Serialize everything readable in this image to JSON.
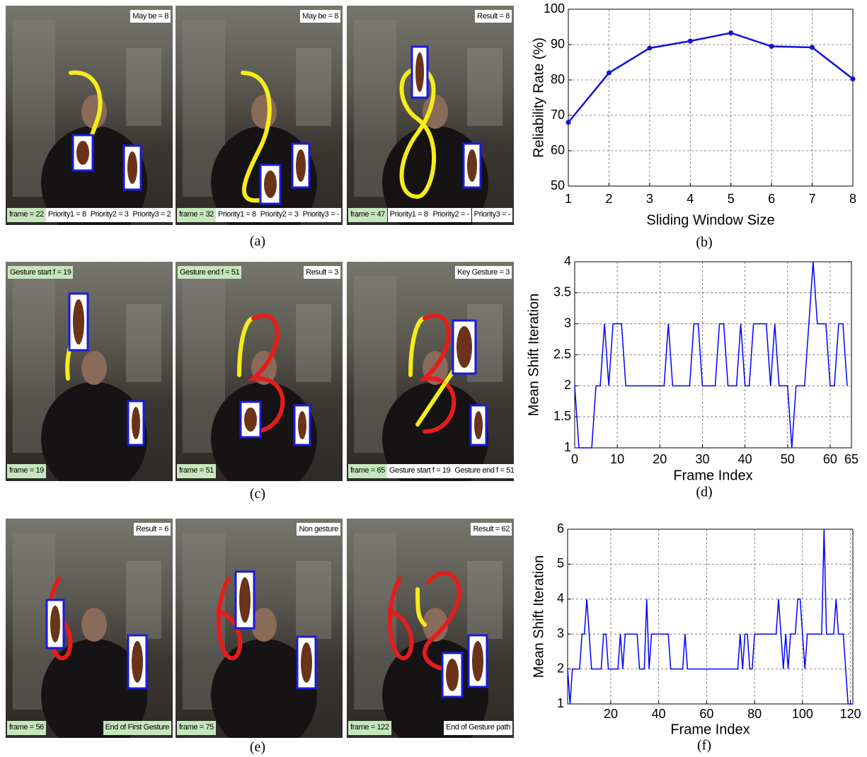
{
  "photo_rows": [
    {
      "caption": "(a)",
      "photos": [
        {
          "top_right": "May be = 8",
          "bottom": [
            "frame = 22",
            "Priority1 = 8",
            "Priority2 = 3",
            "Priority3 = 2"
          ]
        },
        {
          "top_right": "May be = 8",
          "bottom": [
            "frame = 32",
            "Priority1 = 8",
            "Priority2 = 3",
            "Priority3 = -"
          ]
        },
        {
          "top_right": "Result = 8",
          "bottom": [
            "frame = 47",
            "Priority1 = 8",
            "Priority2 = -",
            "Priority3 = -"
          ]
        }
      ]
    },
    {
      "caption": "(c)",
      "photos": [
        {
          "top_left": "Gesture start f = 19",
          "bottom": [
            "frame = 19"
          ]
        },
        {
          "top_left": "Gesture end f = 51",
          "top_right": "Result = 3",
          "bottom": [
            "frame = 51"
          ]
        },
        {
          "top_right": "Key Gesture = 3",
          "bottom": [
            "frame = 65",
            "Gesture start f = 19",
            "Gesture end f = 51"
          ]
        }
      ]
    },
    {
      "caption": "(e)",
      "photos": [
        {
          "top_right": "Result = 6",
          "bottom": [
            "frame = 56",
            "End of First Gesture"
          ]
        },
        {
          "top_right": "Non gesture",
          "bottom": [
            "frame = 75"
          ]
        },
        {
          "top_right": "Result = 62",
          "bottom": [
            "frame = 122",
            "End of Gesture path"
          ]
        }
      ]
    }
  ],
  "chart_data": [
    {
      "type": "line",
      "caption": "(b)",
      "xlabel": "Sliding Window Size",
      "ylabel": "Reliability Rate (%)",
      "x": [
        1,
        2,
        3,
        4,
        5,
        6,
        7,
        8
      ],
      "values": [
        68,
        82,
        89,
        91,
        93.3,
        89.5,
        89.2,
        80.3
      ],
      "color": "#1010e0",
      "markers": true,
      "grid": true,
      "xlim": [
        1,
        8
      ],
      "xticks": [
        1,
        2,
        3,
        4,
        5,
        6,
        7,
        8
      ],
      "ylim": [
        50,
        100
      ],
      "yticks": [
        50,
        60,
        70,
        80,
        90,
        100
      ]
    },
    {
      "type": "line",
      "caption": "(d)",
      "xlabel": "Frame Index",
      "ylabel": "Mean Shift Iteration",
      "x": [
        0,
        1,
        2,
        3,
        4,
        5,
        6,
        7,
        8,
        9,
        10,
        11,
        12,
        13,
        14,
        15,
        16,
        17,
        18,
        19,
        20,
        21,
        22,
        23,
        24,
        25,
        26,
        27,
        28,
        29,
        30,
        31,
        32,
        33,
        34,
        35,
        36,
        37,
        38,
        39,
        40,
        41,
        42,
        43,
        44,
        45,
        46,
        47,
        48,
        49,
        50,
        51,
        52,
        53,
        54,
        55,
        56,
        57,
        58,
        59,
        60,
        61,
        62,
        63,
        64
      ],
      "values": [
        2,
        1,
        1,
        1,
        1,
        2,
        2,
        3,
        2,
        3,
        3,
        3,
        2,
        2,
        2,
        2,
        2,
        2,
        2,
        2,
        2,
        2,
        3,
        2,
        2,
        2,
        2,
        2,
        3,
        3,
        2,
        2,
        2,
        2,
        3,
        3,
        2,
        2,
        2,
        3,
        2,
        2,
        3,
        3,
        3,
        3,
        2,
        3,
        2,
        2,
        2,
        1,
        2,
        2,
        2,
        3,
        4,
        3,
        3,
        3,
        2,
        2,
        3,
        3,
        2
      ],
      "color": "#0000ff",
      "markers": false,
      "grid": true,
      "xlim": [
        0,
        65
      ],
      "xticks": [
        0,
        10,
        20,
        30,
        40,
        50,
        60,
        65
      ],
      "ylim": [
        1,
        4
      ],
      "yticks": [
        1,
        1.5,
        2,
        2.5,
        3,
        3.5,
        4
      ]
    },
    {
      "type": "line",
      "caption": "(f)",
      "xlabel": "Frame Index",
      "ylabel": "Mean Shift Iteration",
      "x": [
        2,
        3,
        4,
        5,
        6,
        7,
        8,
        9,
        10,
        11,
        12,
        13,
        14,
        15,
        16,
        17,
        18,
        19,
        20,
        21,
        22,
        23,
        24,
        25,
        26,
        27,
        28,
        29,
        30,
        31,
        32,
        33,
        34,
        35,
        36,
        37,
        38,
        39,
        40,
        41,
        42,
        43,
        44,
        45,
        46,
        47,
        48,
        49,
        50,
        51,
        52,
        53,
        54,
        55,
        56,
        57,
        58,
        59,
        60,
        61,
        62,
        63,
        64,
        65,
        66,
        67,
        68,
        69,
        70,
        71,
        72,
        73,
        74,
        75,
        76,
        77,
        78,
        79,
        80,
        81,
        82,
        83,
        84,
        85,
        86,
        87,
        88,
        89,
        90,
        91,
        92,
        93,
        94,
        95,
        96,
        97,
        98,
        99,
        100,
        101,
        102,
        103,
        104,
        105,
        106,
        107,
        108,
        109,
        110,
        111,
        112,
        113,
        114,
        115,
        116,
        117,
        118,
        119,
        120,
        121
      ],
      "values": [
        2,
        1,
        2,
        2,
        2,
        2,
        3,
        3,
        4,
        3,
        2,
        2,
        2,
        2,
        2,
        3,
        3,
        2,
        2,
        2,
        2,
        2,
        3,
        2,
        3,
        3,
        3,
        3,
        3,
        3,
        2,
        2,
        2,
        4,
        2,
        3,
        3,
        3,
        3,
        3,
        3,
        3,
        3,
        2,
        2,
        2,
        2,
        2,
        2,
        3,
        2,
        2,
        2,
        2,
        2,
        2,
        2,
        2,
        2,
        2,
        2,
        2,
        2,
        2,
        2,
        2,
        2,
        2,
        2,
        2,
        2,
        2,
        3,
        2,
        3,
        3,
        2,
        2,
        3,
        3,
        3,
        3,
        3,
        3,
        3,
        3,
        3,
        3,
        4,
        3,
        2,
        3,
        2,
        3,
        3,
        3,
        4,
        4,
        3,
        2,
        3,
        3,
        3,
        3,
        3,
        3,
        3,
        6,
        3,
        3,
        3,
        3,
        4,
        3,
        3,
        3,
        2,
        1,
        1,
        1
      ],
      "color": "#0000ff",
      "markers": false,
      "grid": true,
      "xlim": [
        2,
        121
      ],
      "xticks": [
        20,
        40,
        60,
        80,
        100,
        120
      ],
      "ylim": [
        1,
        6
      ],
      "yticks": [
        1,
        2,
        3,
        4,
        5,
        6
      ]
    }
  ]
}
